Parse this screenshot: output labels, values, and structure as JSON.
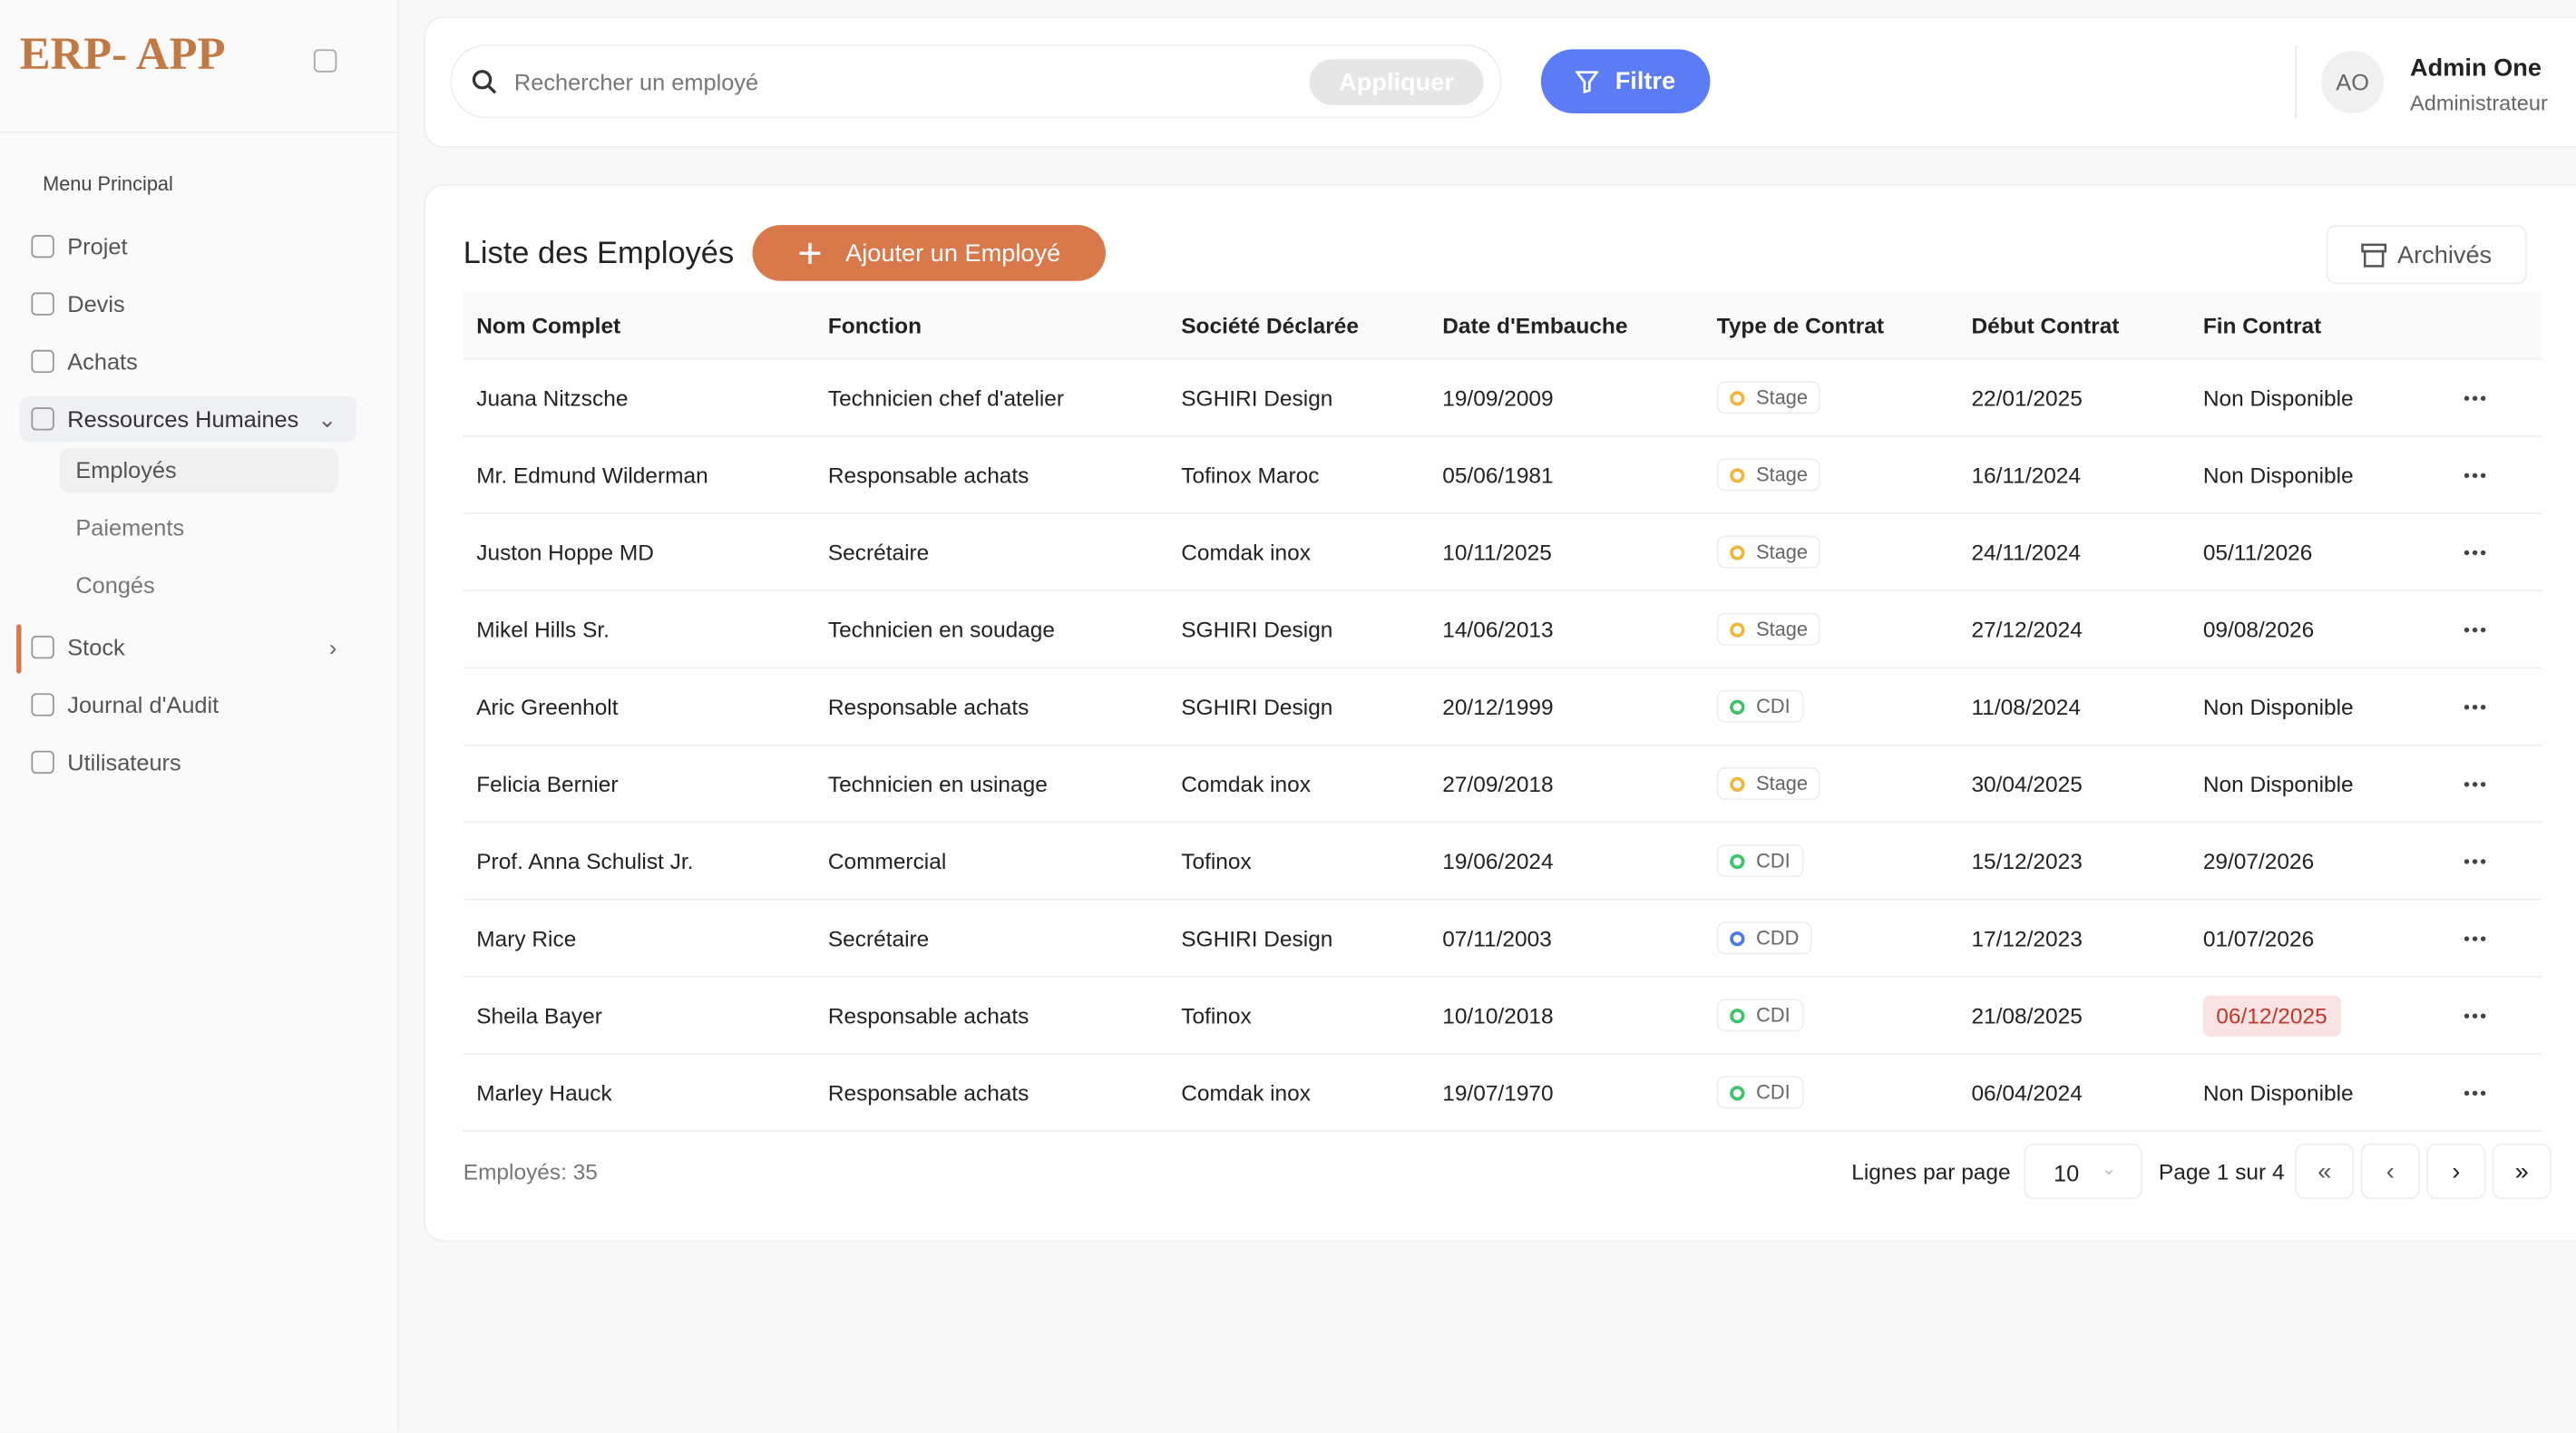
{
  "sidebar": {
    "logo": "ERP- APP",
    "section": "Menu Principal",
    "items": [
      {
        "label": "Projet"
      },
      {
        "label": "Devis"
      },
      {
        "label": "Achats"
      },
      {
        "label": "Ressources Humaines",
        "children": [
          "Employés",
          "Paiements",
          "Congés"
        ]
      },
      {
        "label": "Stock"
      },
      {
        "label": "Journal d'Audit"
      },
      {
        "label": "Utilisateurs"
      }
    ]
  },
  "header": {
    "search_placeholder": "Rechercher un employé",
    "apply": "Appliquer",
    "filter": "Filtre",
    "avatar": "AO",
    "user_name": "Admin One",
    "user_role": "Administrateur"
  },
  "table": {
    "title": "Liste des Employés",
    "add_button": "Ajouter un Employé",
    "archived_button": "Archivés",
    "columns": [
      "Nom Complet",
      "Fonction",
      "Société Déclarée",
      "Date d'Embauche",
      "Type de Contrat",
      "Début Contrat",
      "Fin Contrat"
    ],
    "contract_colors": {
      "Stage": "#f2b53a",
      "CDI": "#3cc46a",
      "CDD": "#4a7be8"
    },
    "rows": [
      {
        "cells": [
          "Juana Nitzsche",
          "Technicien chef d'atelier",
          "SGHIRI Design",
          "19/09/2009",
          "Stage",
          "22/01/2025",
          "Non Disponible"
        ]
      },
      {
        "cells": [
          "Mr. Edmund Wilderman",
          "Responsable achats",
          "Tofinox Maroc",
          "05/06/1981",
          "Stage",
          "16/11/2024",
          "Non Disponible"
        ]
      },
      {
        "cells": [
          "Juston Hoppe MD",
          "Secrétaire",
          "Comdak inox",
          "10/11/2025",
          "Stage",
          "24/11/2024",
          "05/11/2026"
        ]
      },
      {
        "cells": [
          "Mikel Hills Sr.",
          "Technicien en soudage",
          "SGHIRI Design",
          "14/06/2013",
          "Stage",
          "27/12/2024",
          "09/08/2026"
        ]
      },
      {
        "cells": [
          "Aric Greenholt",
          "Responsable achats",
          "SGHIRI Design",
          "20/12/1999",
          "CDI",
          "11/08/2024",
          "Non Disponible"
        ]
      },
      {
        "cells": [
          "Felicia Bernier",
          "Technicien en usinage",
          "Comdak inox",
          "27/09/2018",
          "Stage",
          "30/04/2025",
          "Non Disponible"
        ]
      },
      {
        "cells": [
          "Prof. Anna Schulist Jr.",
          "Commercial",
          "Tofinox",
          "19/06/2024",
          "CDI",
          "15/12/2023",
          "29/07/2026"
        ]
      },
      {
        "cells": [
          "Mary Rice",
          "Secrétaire",
          "SGHIRI Design",
          "07/11/2003",
          "CDD",
          "17/12/2023",
          "01/07/2026"
        ]
      },
      {
        "cells": [
          "Sheila Bayer",
          "Responsable achats",
          "Tofinox",
          "10/10/2018",
          "CDI",
          "21/08/2025",
          "06/12/2025"
        ],
        "alert": true
      },
      {
        "cells": [
          "Marley Hauck",
          "Responsable achats",
          "Comdak inox",
          "19/07/1970",
          "CDI",
          "06/04/2024",
          "Non Disponible"
        ]
      }
    ],
    "total": "Employés: 35",
    "rows_per_page_label": "Lignes par page",
    "rows_per_page": "10",
    "page_info": "Page 1 sur 4"
  }
}
